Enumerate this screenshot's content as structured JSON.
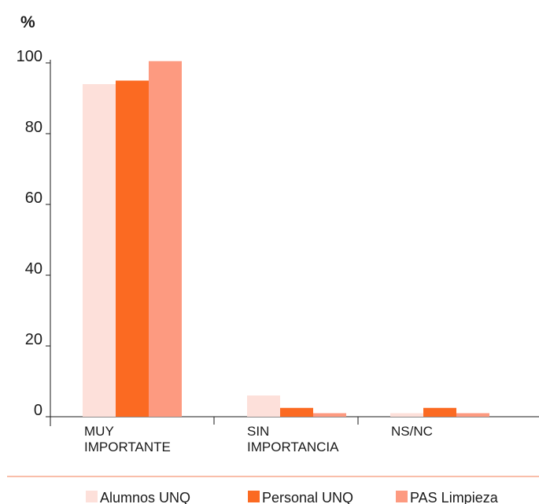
{
  "chart_data": {
    "type": "bar",
    "unit_label": "%",
    "categories": [
      [
        "MUY",
        "IMPORTANTE"
      ],
      [
        "SIN",
        "IMPORTANCIA"
      ],
      [
        "NS/NC"
      ]
    ],
    "series": [
      {
        "name": "Alumnos UNQ",
        "color": "#fde0da",
        "values": [
          94,
          6,
          1
        ]
      },
      {
        "name": "Personal UNQ",
        "color": "#fb6a22",
        "values": [
          95,
          2.5,
          2.5
        ]
      },
      {
        "name": "PAS Limpieza",
        "color": "#fd9a80",
        "values": [
          100.5,
          1,
          1
        ]
      }
    ],
    "yticks": [
      0,
      20,
      40,
      60,
      80,
      100
    ],
    "ylim": [
      0,
      100
    ],
    "grid": false,
    "legend_position": "bottom",
    "divider_color": "#f7a98d"
  }
}
